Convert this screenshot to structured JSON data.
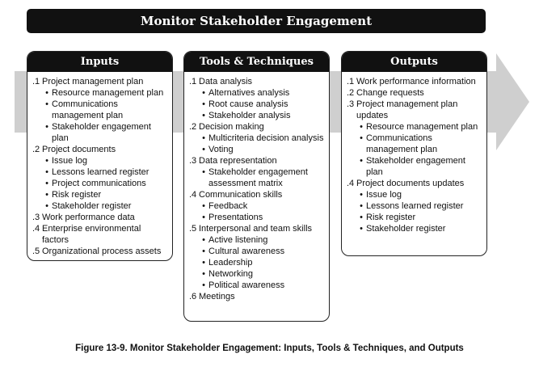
{
  "title": "Monitor Stakeholder Engagement",
  "columns": [
    {
      "key": "inputs",
      "header": "Inputs",
      "items": [
        {
          "num": ".1",
          "text": "Project management plan",
          "subs": [
            "Resource management plan",
            "Communications management plan",
            "Stakeholder engagement plan"
          ]
        },
        {
          "num": ".2",
          "text": "Project documents",
          "subs": [
            "Issue log",
            "Lessons learned register",
            "Project communications",
            "Risk register",
            "Stakeholder register"
          ]
        },
        {
          "num": ".3",
          "text": "Work performance data",
          "subs": []
        },
        {
          "num": ".4",
          "text": "Enterprise environmental factors",
          "subs": []
        },
        {
          "num": ".5",
          "text": "Organizational process assets",
          "subs": []
        }
      ]
    },
    {
      "key": "tools",
      "header": "Tools & Techniques",
      "items": [
        {
          "num": ".1",
          "text": "Data analysis",
          "subs": [
            "Alternatives analysis",
            "Root cause analysis",
            "Stakeholder analysis"
          ]
        },
        {
          "num": ".2",
          "text": "Decision making",
          "subs": [
            "Multicriteria decision analysis",
            "Voting"
          ]
        },
        {
          "num": ".3",
          "text": "Data representation",
          "subs": [
            "Stakeholder engagement assessment matrix"
          ]
        },
        {
          "num": ".4",
          "text": "Communication skills",
          "subs": [
            "Feedback",
            "Presentations"
          ]
        },
        {
          "num": ".5",
          "text": "Interpersonal and team skills",
          "subs": [
            "Active listening",
            "Cultural awareness",
            "Leadership",
            "Networking",
            "Political awareness"
          ]
        },
        {
          "num": ".6",
          "text": "Meetings",
          "subs": []
        }
      ]
    },
    {
      "key": "outputs",
      "header": "Outputs",
      "items": [
        {
          "num": ".1",
          "text": "Work performance information",
          "subs": []
        },
        {
          "num": ".2",
          "text": "Change requests",
          "subs": []
        },
        {
          "num": ".3",
          "text": "Project management plan updates",
          "subs": [
            "Resource management plan",
            "Communications management plan",
            "Stakeholder engagement plan"
          ]
        },
        {
          "num": ".4",
          "text": "Project documents updates",
          "subs": [
            "Issue log",
            "Lessons learned register",
            "Risk register",
            "Stakeholder register"
          ]
        }
      ]
    }
  ],
  "caption": "Figure 13-9. Monitor Stakeholder Engagement: Inputs, Tools & Techniques, and Outputs",
  "colors": {
    "banner": "#111111",
    "arrow": "#cfcfcf"
  }
}
